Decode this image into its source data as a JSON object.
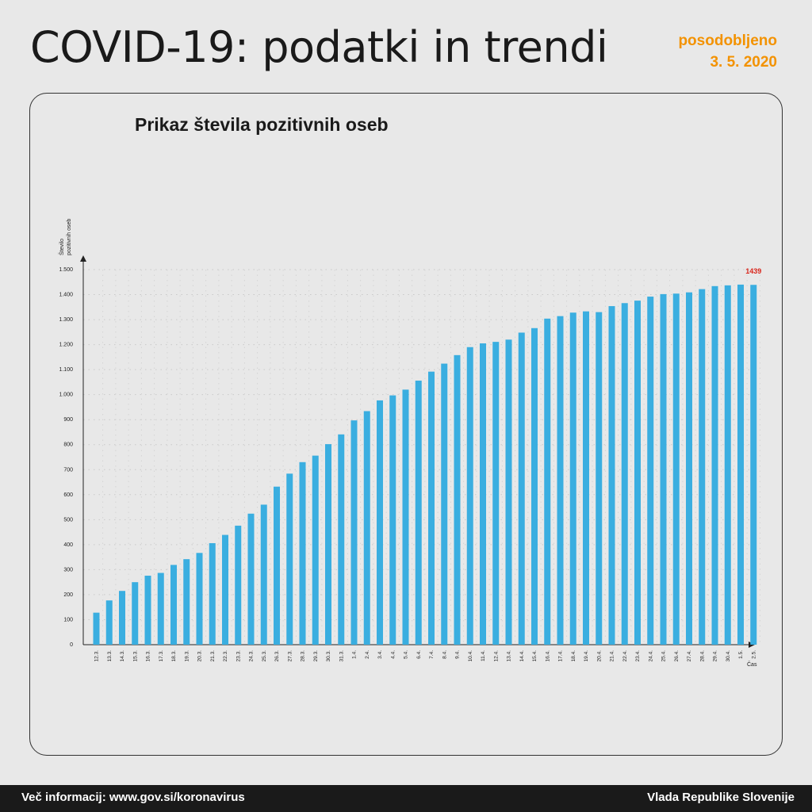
{
  "header": {
    "title": "COVID-19: podatki in trendi",
    "updated_label": "posodobljeno",
    "updated_date": "3. 5. 2020"
  },
  "footer": {
    "info": "Več informacij: www.gov.si/koronavirus",
    "publisher": "Vlada Republike Slovenije"
  },
  "colors": {
    "bar": "#3aaee0",
    "accent": "#f39200",
    "highlight_label": "#d9261c"
  },
  "chart_data": {
    "type": "bar",
    "title": "Prikaz števila pozitivnih oseb",
    "ylabel_line1": "Število",
    "ylabel_line2": "pozitivnih oseb",
    "xlabel": "Čas",
    "ylim": [
      0,
      1500
    ],
    "yticks": [
      0,
      100,
      200,
      300,
      400,
      500,
      600,
      700,
      800,
      900,
      1000,
      1100,
      1200,
      1300,
      1400,
      1500
    ],
    "ytick_labels": [
      "0",
      "100",
      "200",
      "300",
      "400",
      "500",
      "600",
      "700",
      "800",
      "900",
      "1.000",
      "1.100",
      "1.200",
      "1.300",
      "1.400",
      "1.500"
    ],
    "grid": true,
    "categories": [
      "12.3.",
      "13.3.",
      "14.3.",
      "15.3.",
      "16.3.",
      "17.3.",
      "18.3.",
      "19.3.",
      "20.3.",
      "21.3.",
      "22.3.",
      "23.3.",
      "24.3.",
      "25.3.",
      "26.3.",
      "27.3.",
      "28.3.",
      "29.3.",
      "30.3.",
      "31.3.",
      "1.4.",
      "2.4.",
      "3.4.",
      "4.4.",
      "5.4.",
      "6.4.",
      "7.4.",
      "8.4.",
      "9.4.",
      "10.4.",
      "11.4.",
      "12.4.",
      "13.4.",
      "14.4.",
      "15.4.",
      "16.4.",
      "17.4.",
      "18.4.",
      "19.4.",
      "20.4.",
      "21.4.",
      "22.4.",
      "23.4.",
      "24.4.",
      "25.4.",
      "26.4.",
      "27.4.",
      "28.4.",
      "29.4.",
      "30.4.",
      "1.5.",
      "2.5."
    ],
    "values": [
      128,
      177,
      215,
      250,
      276,
      287,
      319,
      342,
      367,
      406,
      439,
      476,
      524,
      560,
      632,
      684,
      730,
      756,
      802,
      841,
      897,
      934,
      977,
      997,
      1020,
      1056,
      1092,
      1124,
      1158,
      1190,
      1205,
      1211,
      1220,
      1248,
      1266,
      1304,
      1314,
      1328,
      1333,
      1330,
      1354,
      1366,
      1376,
      1392,
      1402,
      1404,
      1409,
      1422,
      1434,
      1437,
      1440,
      1439
    ],
    "annotation": {
      "index": 51,
      "text": "1439"
    }
  }
}
